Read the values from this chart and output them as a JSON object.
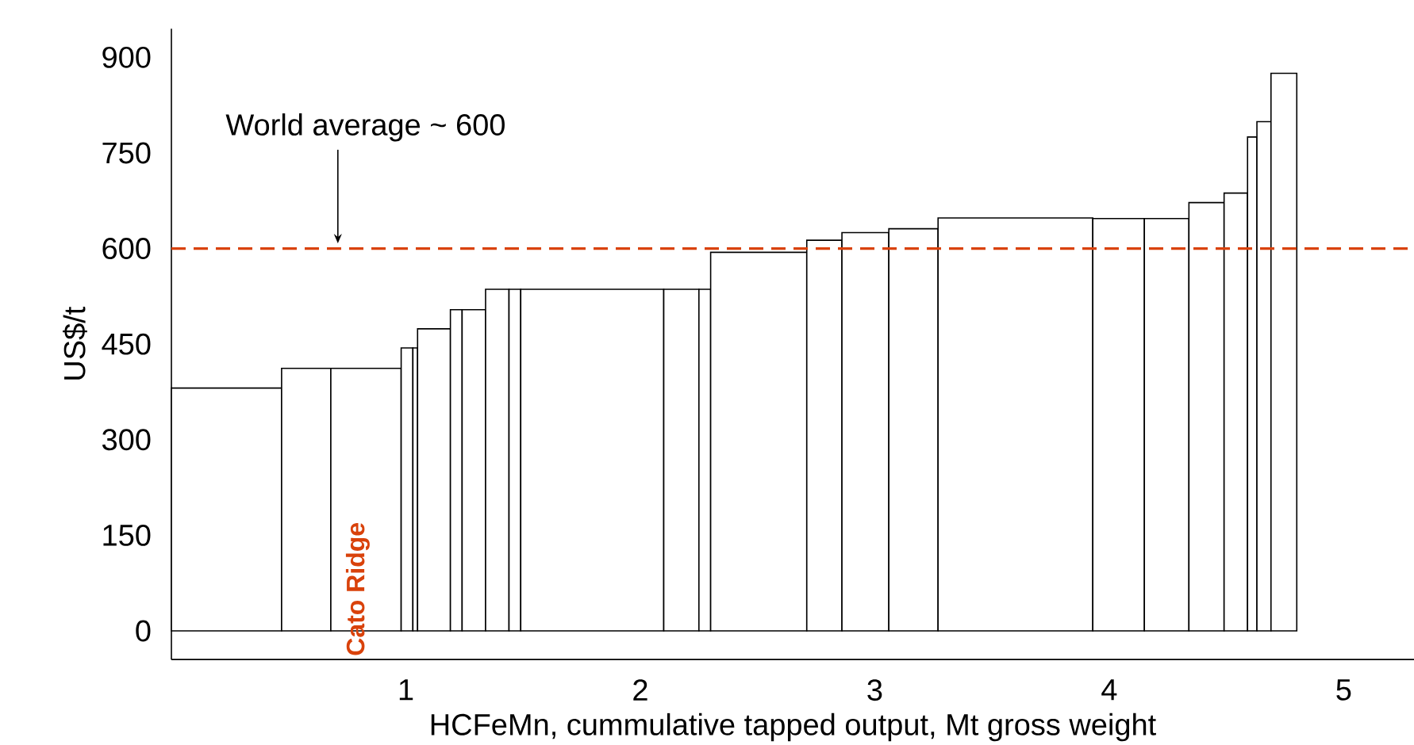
{
  "chart_data": {
    "type": "histogram",
    "xlabel": "HCFeMn, cummulative tapped output, Mt gross weight",
    "ylabel": "US$/t",
    "bins": [
      0,
      0.47,
      0.68,
      0.98,
      1.03,
      1.05,
      1.19,
      1.24,
      1.34,
      1.44,
      1.49,
      2.1,
      2.25,
      2.3,
      2.71,
      2.86,
      3.06,
      3.27,
      3.93,
      4.15,
      4.34,
      4.49,
      4.59,
      4.63,
      4.69,
      4.8
    ],
    "values": [
      381,
      412,
      412,
      444,
      444,
      474,
      504,
      504,
      536,
      536,
      536,
      536,
      536,
      594,
      613,
      625,
      631,
      648,
      647,
      647,
      672,
      687,
      775,
      799,
      875
    ],
    "color": "#ffffff",
    "xlim": [
      0,
      5.3
    ],
    "ylim": [
      -45,
      945
    ],
    "xticks": [
      1,
      2,
      3,
      4,
      5
    ],
    "yticks": [
      0,
      150,
      300,
      450,
      600,
      750,
      900
    ],
    "ref_lines": [
      {
        "axis": "y",
        "value": 600,
        "label": "World average ~ 600",
        "color": "#d9420b",
        "line_style": "dashed"
      }
    ],
    "annotations": [
      "Cato Ridge"
    ]
  }
}
